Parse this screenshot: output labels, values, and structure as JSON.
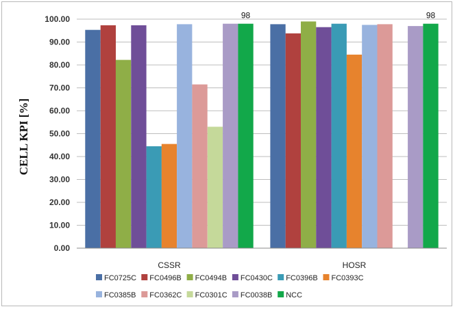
{
  "chart_data": {
    "type": "bar",
    "ylabel": "CELL  KPI [%]",
    "ylim": [
      0,
      100
    ],
    "yticks": [
      "0.00",
      "10.00",
      "20.00",
      "30.00",
      "40.00",
      "50.00",
      "60.00",
      "70.00",
      "80.00",
      "90.00",
      "100.00"
    ],
    "categories": [
      "CSSR",
      "HOSR"
    ],
    "grid": true,
    "legend_position": "bottom",
    "series": [
      {
        "name": "FC0725C",
        "color": "#4A6FA5",
        "values": [
          95.3,
          97.8
        ]
      },
      {
        "name": "FC0496B",
        "color": "#B0413E",
        "values": [
          97.3,
          93.8
        ]
      },
      {
        "name": "FC0494B",
        "color": "#8FAE47",
        "values": [
          82.2,
          99.0
        ]
      },
      {
        "name": "FC0430C",
        "color": "#6F4E98",
        "values": [
          97.3,
          96.5
        ]
      },
      {
        "name": "FC0396B",
        "color": "#3A9BB5",
        "values": [
          44.5,
          98.0
        ]
      },
      {
        "name": "FC0393C",
        "color": "#E7832D",
        "values": [
          45.5,
          84.5
        ]
      },
      {
        "name": "FC0385B",
        "color": "#98B3DE",
        "values": [
          97.8,
          97.5
        ]
      },
      {
        "name": "FC0362C",
        "color": "#DC9A98",
        "values": [
          71.5,
          97.8
        ]
      },
      {
        "name": "FC0301C",
        "color": "#C5D99A",
        "values": [
          53.0,
          null
        ]
      },
      {
        "name": "FC0038B",
        "color": "#A99BC6",
        "values": [
          98.0,
          97.0
        ]
      },
      {
        "name": "NCC",
        "color": "#12A84A",
        "values": [
          98.0,
          98.0
        ]
      }
    ],
    "annotations": [
      {
        "category": "CSSR",
        "series": "NCC",
        "text": "98"
      },
      {
        "category": "HOSR",
        "series": "NCC",
        "text": "98"
      }
    ]
  }
}
